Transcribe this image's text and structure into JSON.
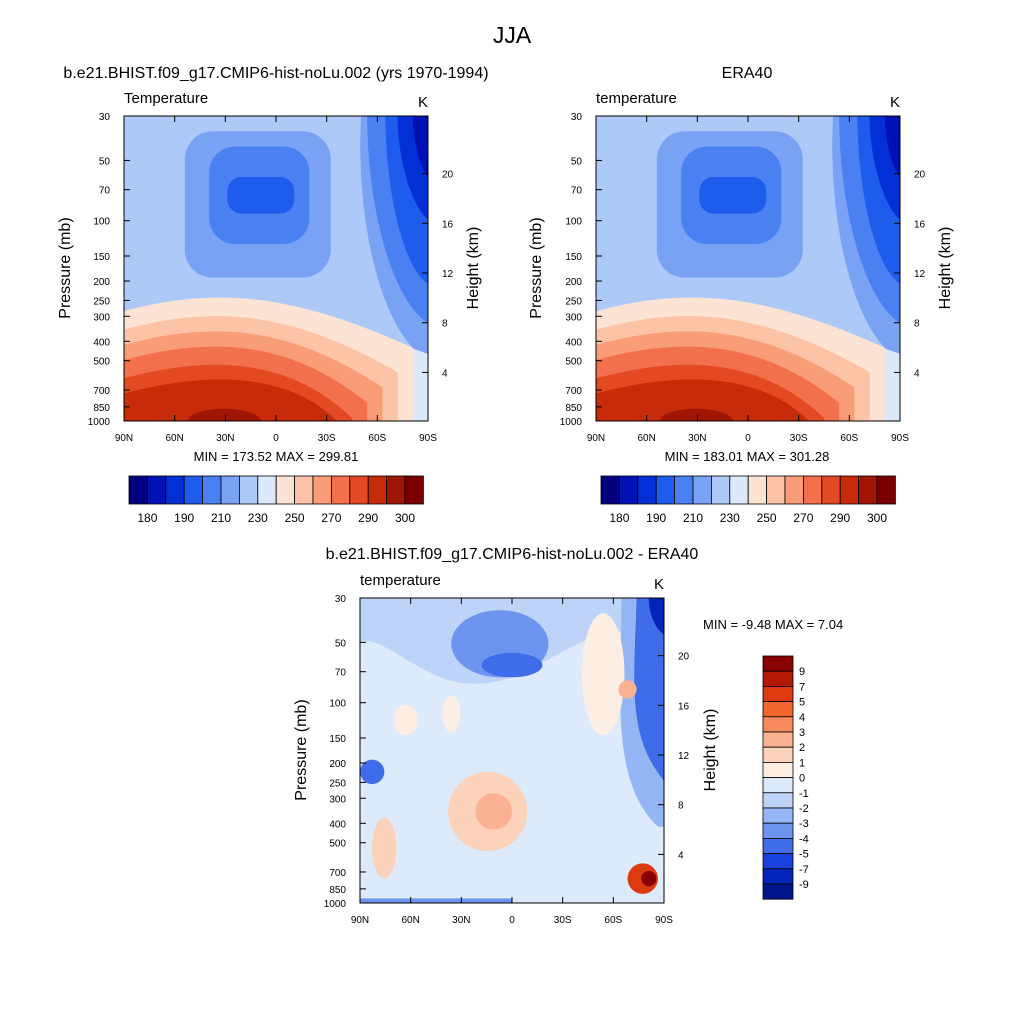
{
  "figure_title": "JJA",
  "axis_labels": {
    "pressure": "Pressure (mb)",
    "height": "Height (km)"
  },
  "chart_data": [
    {
      "type": "heatmap",
      "panel": "model",
      "title": "b.e21.BHIST.f09_g17.CMIP6-hist-noLu.002 (yrs 1970-1994)",
      "variable": "Temperature",
      "units": "K",
      "stats": "MIN = 173.52  MAX = 299.81",
      "ylabel": "Pressure (mb)",
      "y2label": "Height (km)",
      "x_ticks": [
        "90N",
        "60N",
        "30N",
        "0",
        "30S",
        "60S",
        "90S"
      ],
      "pressure_ticks": [
        "30",
        "50",
        "70",
        "100",
        "150",
        "200",
        "250",
        "300",
        "400",
        "500",
        "700",
        "850",
        "1000"
      ],
      "height_ticks": [
        "4",
        "8",
        "12",
        "16",
        "20"
      ],
      "xlim": [
        90,
        -90
      ],
      "pressure_range": [
        1000,
        30
      ],
      "colorbar_labels": [
        "180",
        "190",
        "210",
        "230",
        "250",
        "270",
        "290",
        "300"
      ],
      "colors": [
        "#00007f",
        "#0012b4",
        "#0330d6",
        "#1e5cee",
        "#4a80f2",
        "#7aa2f4",
        "#adc9f8",
        "#dbe9fb",
        "#fde3d3",
        "#fcc3a6",
        "#f99d78",
        "#f2714c",
        "#e34a23",
        "#c82b0a",
        "#a01503",
        "#7a0000"
      ]
    },
    {
      "type": "heatmap",
      "panel": "obs",
      "title": "ERA40",
      "variable": "temperature",
      "units": "K",
      "stats": "MIN = 183.01  MAX = 301.28",
      "ylabel": "Pressure (mb)",
      "y2label": "Height (km)",
      "x_ticks": [
        "90N",
        "60N",
        "30N",
        "0",
        "30S",
        "60S",
        "90S"
      ],
      "pressure_ticks": [
        "30",
        "50",
        "70",
        "100",
        "150",
        "200",
        "250",
        "300",
        "400",
        "500",
        "700",
        "850",
        "1000"
      ],
      "height_ticks": [
        "4",
        "8",
        "12",
        "16",
        "20"
      ],
      "xlim": [
        90,
        -90
      ],
      "pressure_range": [
        1000,
        30
      ],
      "colorbar_labels": [
        "180",
        "190",
        "210",
        "230",
        "250",
        "270",
        "290",
        "300"
      ],
      "colors": [
        "#00007f",
        "#0012b4",
        "#0330d6",
        "#1e5cee",
        "#4a80f2",
        "#7aa2f4",
        "#adc9f8",
        "#dbe9fb",
        "#fde3d3",
        "#fcc3a6",
        "#f99d78",
        "#f2714c",
        "#e34a23",
        "#c82b0a",
        "#a01503",
        "#7a0000"
      ]
    },
    {
      "type": "heatmap",
      "panel": "diff",
      "title": "b.e21.BHIST.f09_g17.CMIP6-hist-noLu.002 - ERA40",
      "variable": "temperature",
      "units": "K",
      "stats": "MIN =  -9.48  MAX =   7.04",
      "ylabel": "Pressure (mb)",
      "y2label": "Height (km)",
      "x_ticks": [
        "90N",
        "60N",
        "30N",
        "0",
        "30S",
        "60S",
        "90S"
      ],
      "pressure_ticks": [
        "30",
        "50",
        "70",
        "100",
        "150",
        "200",
        "250",
        "300",
        "400",
        "500",
        "700",
        "850",
        "1000"
      ],
      "height_ticks": [
        "4",
        "8",
        "12",
        "16",
        "20"
      ],
      "xlim": [
        90,
        -90
      ],
      "pressure_range": [
        1000,
        30
      ],
      "colorbar_labels": [
        "9",
        "7",
        "5",
        "4",
        "3",
        "2",
        "1",
        "0",
        "-1",
        "-2",
        "-3",
        "-4",
        "-5",
        "-7",
        "-9"
      ],
      "colors": [
        "#8a0000",
        "#b31a05",
        "#dd3a10",
        "#f2652f",
        "#f78b5e",
        "#fab292",
        "#fcd2bb",
        "#fdeee3",
        "#ddeafb",
        "#bdd3f8",
        "#95b6f5",
        "#6d95f0",
        "#3f6ce8",
        "#1740dc",
        "#0224b8",
        "#00158a"
      ]
    }
  ]
}
